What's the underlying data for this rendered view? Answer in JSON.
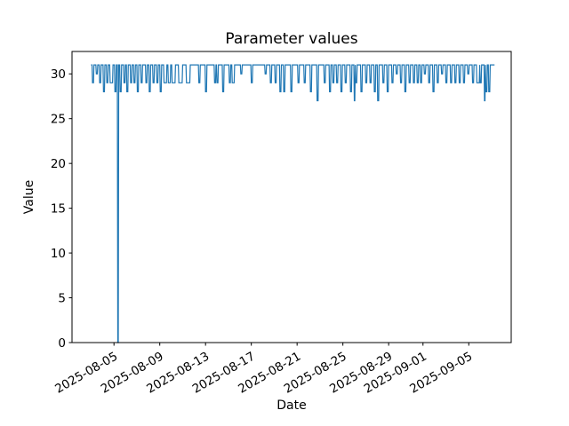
{
  "figure": {
    "background": "#ffffff",
    "axis_color": "#000000",
    "line_color": "#1f77b4"
  },
  "chart_data": {
    "type": "line",
    "title": "Parameter values",
    "xlabel": "Date",
    "ylabel": "Value",
    "grid": false,
    "legend": null,
    "ylim": [
      0,
      32.5
    ],
    "y_ticks": [
      0,
      5,
      10,
      15,
      20,
      25,
      30
    ],
    "x_axis": {
      "start": "2025-08-01T08:00",
      "end": "2025-09-08T17:00",
      "tick_rotation_deg": 30,
      "ticks": [
        {
          "t": "2025-08-05T00:00",
          "label": "2025-08-05"
        },
        {
          "t": "2025-08-09T00:00",
          "label": "2025-08-09"
        },
        {
          "t": "2025-08-13T00:00",
          "label": "2025-08-13"
        },
        {
          "t": "2025-08-17T00:00",
          "label": "2025-08-17"
        },
        {
          "t": "2025-08-21T00:00",
          "label": "2025-08-21"
        },
        {
          "t": "2025-08-25T00:00",
          "label": "2025-08-25"
        },
        {
          "t": "2025-08-29T00:00",
          "label": "2025-08-29"
        },
        {
          "t": "2025-09-01T00:00",
          "label": "2025-09-01"
        },
        {
          "t": "2025-09-05T00:00",
          "label": "2025-09-05"
        }
      ]
    },
    "series": [
      {
        "baseline": 31,
        "start": "2025-08-03T00:00",
        "end": "2025-09-07T06:00",
        "interval_hours": 1,
        "dips": [
          [
            "2025-08-03T03:00",
            29
          ],
          [
            "2025-08-03T11:00",
            30
          ],
          [
            "2025-08-03T18:00",
            29
          ],
          [
            "2025-08-04T02:00",
            28
          ],
          [
            "2025-08-04T09:00",
            29
          ],
          [
            "2025-08-04T16:00",
            29,
            6
          ],
          [
            "2025-08-05T02:00",
            28
          ],
          [
            "2025-08-05T08:00",
            0,
            2
          ],
          [
            "2025-08-05T13:00",
            28
          ],
          [
            "2025-08-05T21:00",
            29
          ],
          [
            "2025-08-06T03:00",
            28
          ],
          [
            "2025-08-06T11:00",
            29
          ],
          [
            "2025-08-06T18:00",
            29
          ],
          [
            "2025-08-07T01:00",
            28
          ],
          [
            "2025-08-07T09:00",
            29
          ],
          [
            "2025-08-07T19:00",
            29
          ],
          [
            "2025-08-08T02:00",
            28
          ],
          [
            "2025-08-08T10:00",
            29
          ],
          [
            "2025-08-08T18:00",
            29
          ],
          [
            "2025-08-09T01:00",
            28
          ],
          [
            "2025-08-09T09:00",
            29,
            6
          ],
          [
            "2025-08-09T18:00",
            29,
            5
          ],
          [
            "2025-08-10T02:00",
            29,
            7
          ],
          [
            "2025-08-10T16:00",
            29,
            8
          ],
          [
            "2025-08-11T08:00",
            29,
            8
          ],
          [
            "2025-08-12T10:00",
            29
          ],
          [
            "2025-08-13T00:00",
            28
          ],
          [
            "2025-08-13T19:00",
            29
          ],
          [
            "2025-08-14T00:00",
            29
          ],
          [
            "2025-08-14T12:00",
            28
          ],
          [
            "2025-08-15T02:00",
            29
          ],
          [
            "2025-08-15T08:00",
            29,
            5
          ],
          [
            "2025-08-16T02:00",
            30
          ],
          [
            "2025-08-17T00:00",
            29
          ],
          [
            "2025-08-18T05:00",
            30
          ],
          [
            "2025-08-18T16:00",
            29
          ],
          [
            "2025-08-19T02:00",
            29
          ],
          [
            "2025-08-19T12:00",
            28
          ],
          [
            "2025-08-19T20:00",
            28
          ],
          [
            "2025-08-20T11:00",
            28
          ],
          [
            "2025-08-21T02:00",
            29
          ],
          [
            "2025-08-21T15:00",
            29
          ],
          [
            "2025-08-22T04:00",
            28
          ],
          [
            "2025-08-22T18:00",
            27
          ],
          [
            "2025-08-23T09:00",
            29
          ],
          [
            "2025-08-23T20:00",
            28
          ],
          [
            "2025-08-24T03:00",
            29
          ],
          [
            "2025-08-24T11:00",
            29
          ],
          [
            "2025-08-24T20:00",
            28
          ],
          [
            "2025-08-25T05:00",
            29
          ],
          [
            "2025-08-25T16:00",
            28
          ],
          [
            "2025-08-26T00:00",
            27,
            2
          ],
          [
            "2025-08-26T03:00",
            29
          ],
          [
            "2025-08-26T14:00",
            28
          ],
          [
            "2025-08-27T00:00",
            29
          ],
          [
            "2025-08-27T09:00",
            29
          ],
          [
            "2025-08-27T18:00",
            28
          ],
          [
            "2025-08-28T01:00",
            27
          ],
          [
            "2025-08-28T12:00",
            29
          ],
          [
            "2025-08-28T21:00",
            28
          ],
          [
            "2025-08-29T07:00",
            29
          ],
          [
            "2025-08-29T16:00",
            30
          ],
          [
            "2025-08-30T01:00",
            29
          ],
          [
            "2025-08-30T10:00",
            28
          ],
          [
            "2025-08-30T19:00",
            29
          ],
          [
            "2025-08-31T04:00",
            29
          ],
          [
            "2025-08-31T12:00",
            29
          ],
          [
            "2025-08-31T19:00",
            29
          ],
          [
            "2025-09-01T03:00",
            30
          ],
          [
            "2025-09-01T12:00",
            29
          ],
          [
            "2025-09-01T21:00",
            28
          ],
          [
            "2025-09-02T06:00",
            29
          ],
          [
            "2025-09-02T15:00",
            30
          ],
          [
            "2025-09-03T00:00",
            29
          ],
          [
            "2025-09-03T10:00",
            29
          ],
          [
            "2025-09-03T19:00",
            29
          ],
          [
            "2025-09-04T04:00",
            29
          ],
          [
            "2025-09-04T13:00",
            29
          ],
          [
            "2025-09-04T22:00",
            30
          ],
          [
            "2025-09-05T08:00",
            29
          ],
          [
            "2025-09-05T17:00",
            29,
            6
          ],
          [
            "2025-09-06T00:00",
            29
          ],
          [
            "2025-09-06T09:00",
            27,
            2
          ],
          [
            "2025-09-06T12:00",
            28
          ],
          [
            "2025-09-06T18:00",
            28
          ]
        ]
      }
    ]
  }
}
